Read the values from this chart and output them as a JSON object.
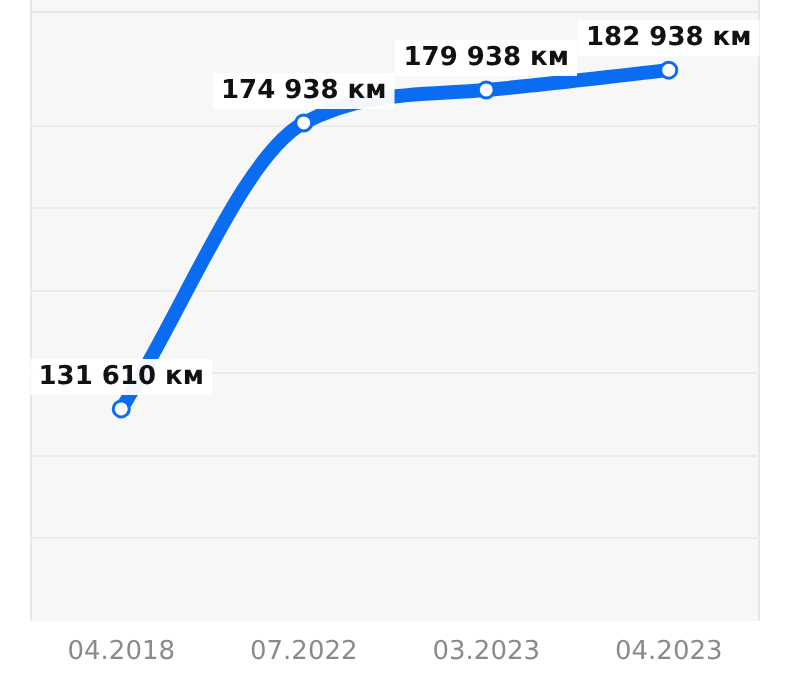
{
  "chart_data": {
    "type": "line",
    "categories": [
      "04.2018",
      "07.2022",
      "03.2023",
      "04.2023"
    ],
    "series": [
      {
        "color": "#0a6cf0",
        "values": [
          131610,
          174938,
          179938,
          182938
        ],
        "value_labels": [
          "131 610 км",
          "174 938 км",
          "179 938 км",
          "182 938 км"
        ]
      }
    ],
    "ylim": [
      99500,
      191900
    ],
    "yticks": [
      {
        "value": 112000,
        "label": null
      },
      {
        "value": 124500,
        "label": null
      },
      {
        "value": 137000,
        "label": null
      },
      {
        "value": 149500,
        "label": null
      },
      {
        "value": 162000,
        "label": null
      },
      {
        "value": 174500,
        "label": null
      }
    ],
    "grid": "y",
    "legend": false,
    "tick_labels": "x",
    "marker": "circle",
    "line_style": "solid"
  }
}
